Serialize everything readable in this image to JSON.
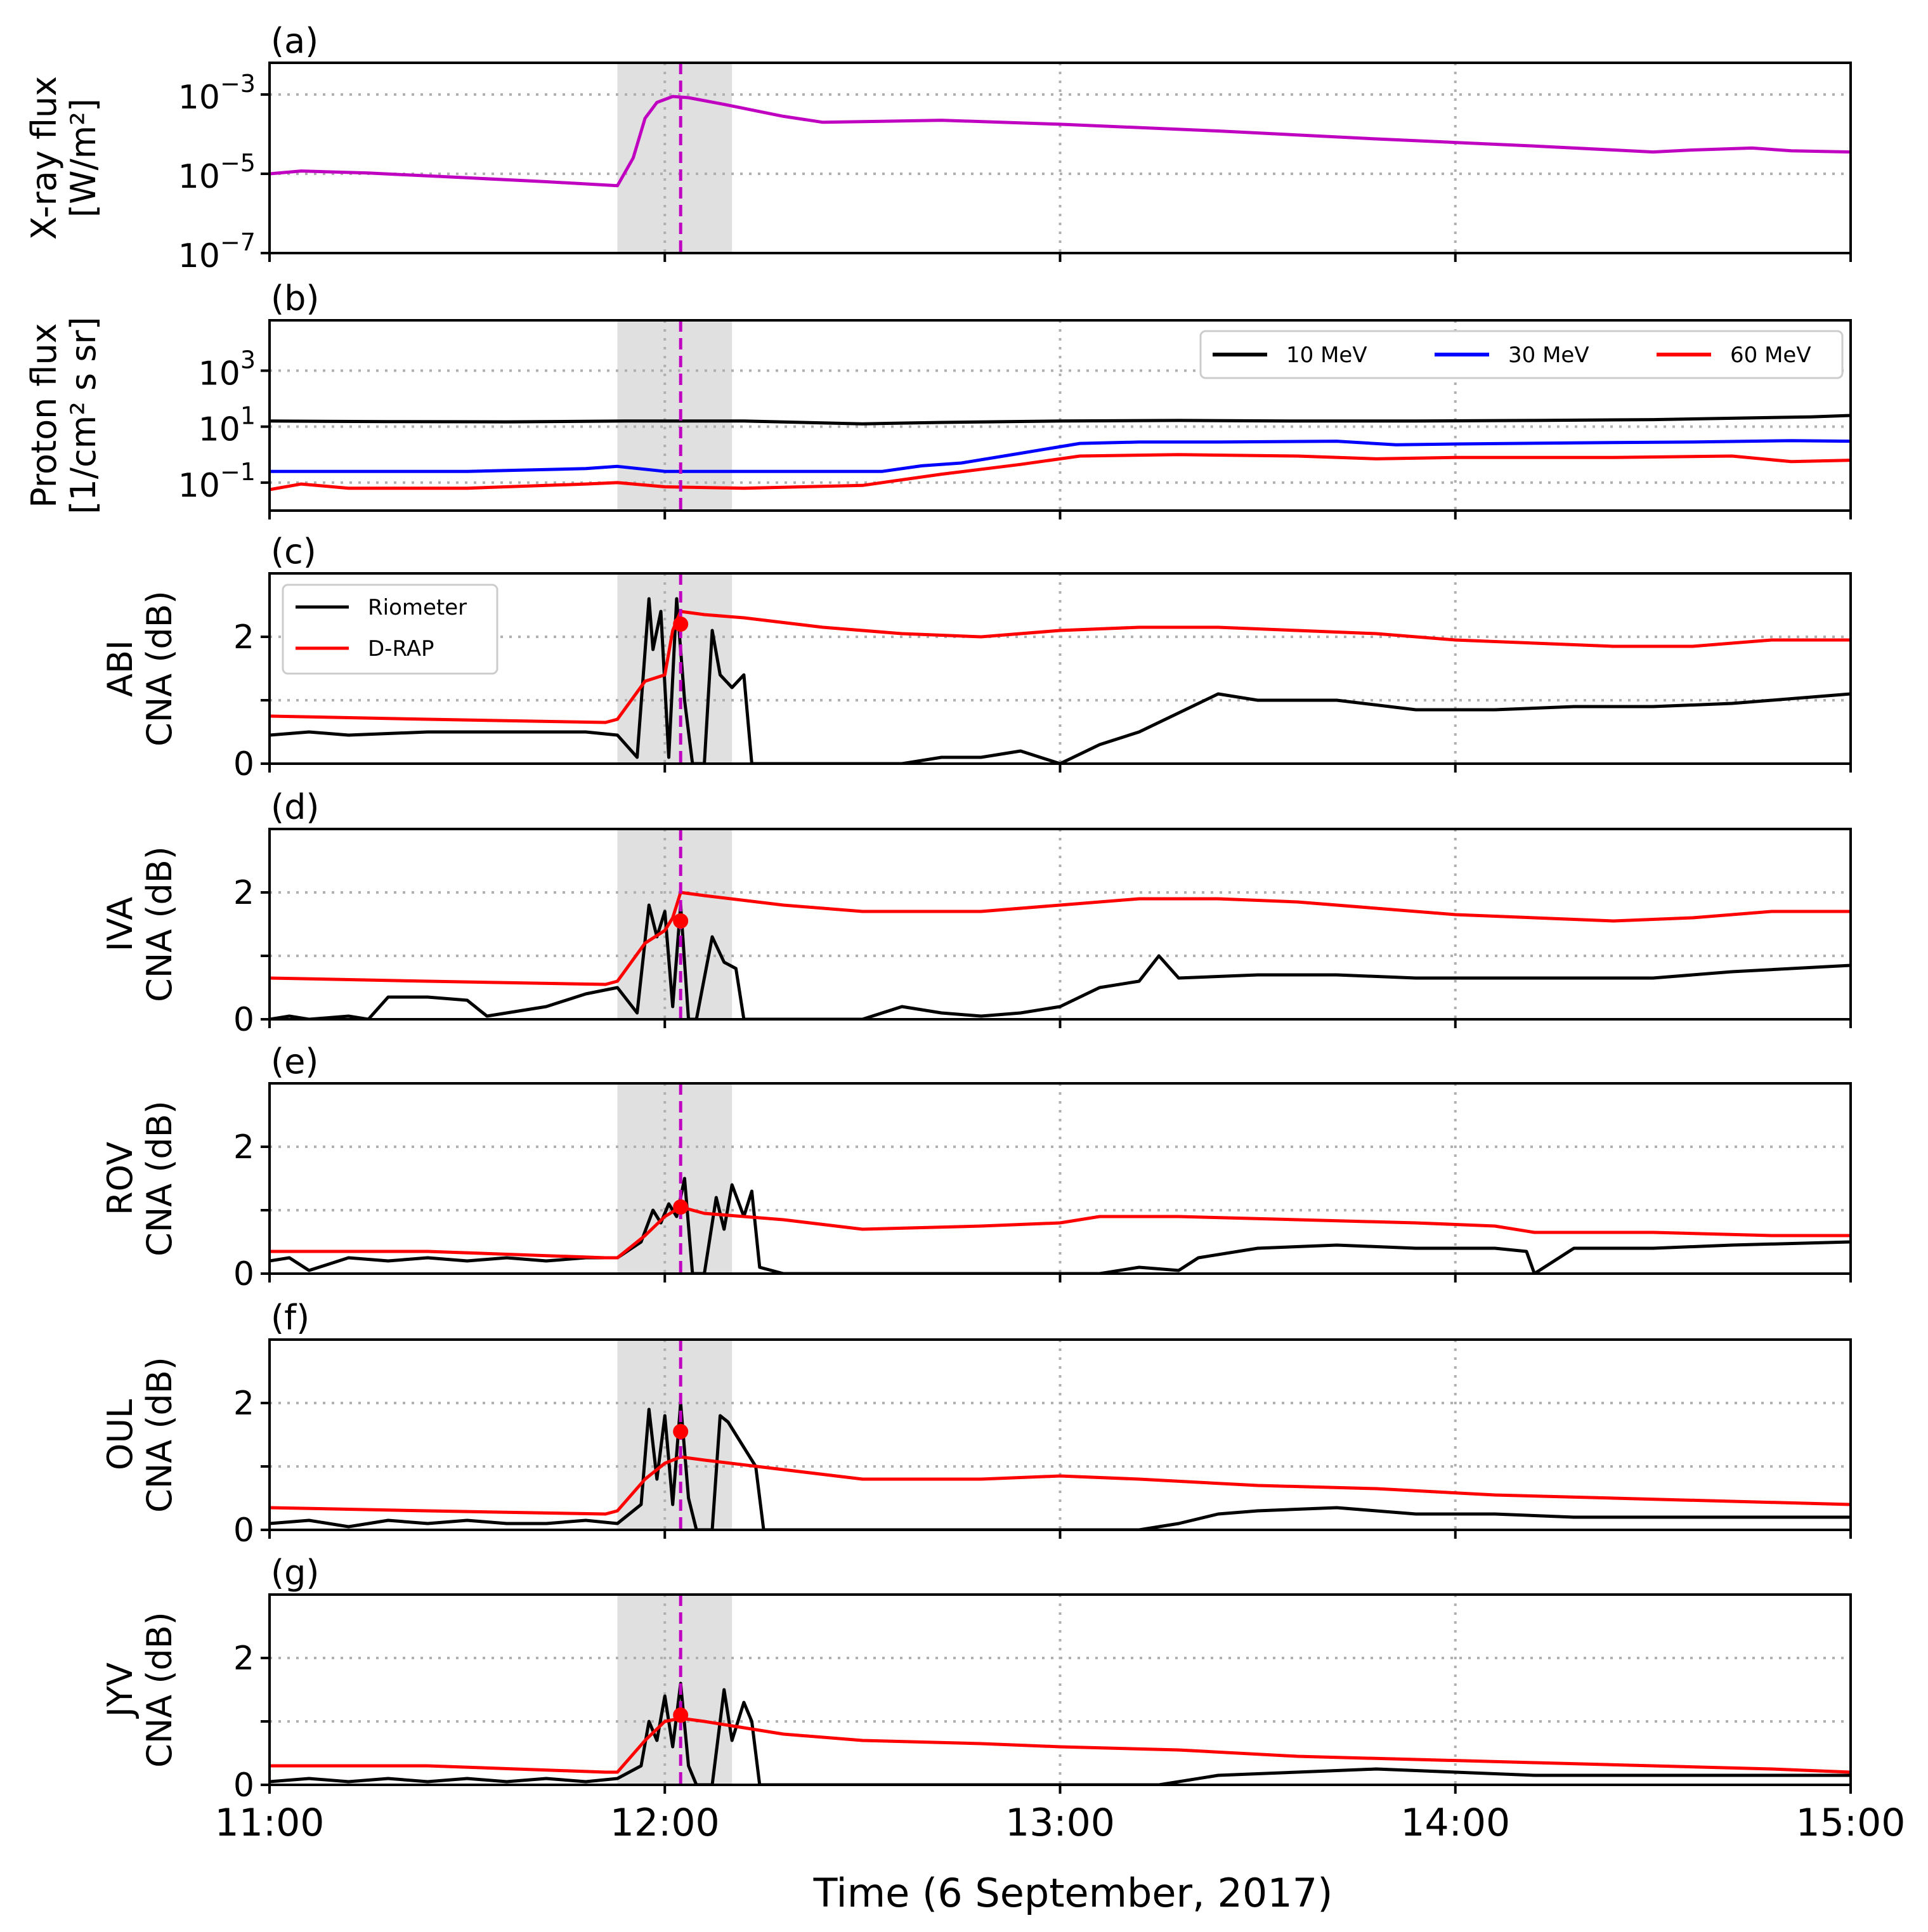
{
  "figure": {
    "xlabel": "Time (6 September, 2017)",
    "x_tick_labels": [
      "11:00",
      "12:00",
      "13:00",
      "14:00",
      "15:00"
    ],
    "shaded_interval_hours": [
      11.88,
      12.17
    ],
    "flare_marker_hour": 12.04,
    "colors": {
      "xray": "#c000c0",
      "flare_marker": "#c000c0",
      "shade": "#e0e0e0",
      "riometer": "#000000",
      "drap": "#ff0000",
      "p10": "#000000",
      "p30": "#0000ff",
      "p60": "#ff0000"
    }
  },
  "chart_data": [
    {
      "type": "line",
      "panel": "(a)",
      "ylabel_line1": "X-ray flux",
      "ylabel_line2": "[W/m²]",
      "y_scale": "log",
      "ylim_log10": [
        -7,
        -2.2
      ],
      "y_ticks": [
        {
          "log": -3,
          "base": "10",
          "exp": "−3"
        },
        {
          "log": -5,
          "base": "10",
          "exp": "−5"
        },
        {
          "log": -7,
          "base": "10",
          "exp": "−7"
        }
      ],
      "series": [
        {
          "name": "X-ray",
          "color_key": "xray",
          "x": [
            11.0,
            11.08,
            11.25,
            11.5,
            11.7,
            11.88,
            11.92,
            11.95,
            11.98,
            12.02,
            12.06,
            12.15,
            12.3,
            12.4,
            12.7,
            13.0,
            13.4,
            13.8,
            14.2,
            14.5,
            14.6,
            14.75,
            14.85,
            15.0
          ],
          "y_log10": [
            -5.0,
            -4.93,
            -4.98,
            -5.1,
            -5.2,
            -5.3,
            -4.6,
            -3.6,
            -3.2,
            -3.05,
            -3.08,
            -3.25,
            -3.55,
            -3.7,
            -3.65,
            -3.75,
            -3.92,
            -4.12,
            -4.3,
            -4.45,
            -4.4,
            -4.35,
            -4.42,
            -4.45
          ]
        }
      ]
    },
    {
      "type": "line",
      "panel": "(b)",
      "ylabel_line1": "Proton flux",
      "ylabel_line2": "[1/cm² s sr]",
      "y_scale": "log",
      "ylim_log10": [
        -2,
        4.8
      ],
      "y_ticks": [
        {
          "log": 3,
          "base": "10",
          "exp": "3"
        },
        {
          "log": 1,
          "base": "10",
          "exp": "1"
        },
        {
          "log": -1,
          "base": "10",
          "exp": "−1"
        }
      ],
      "legend": [
        "10 MeV",
        "30 MeV",
        "60 MeV"
      ],
      "series": [
        {
          "name": "10 MeV",
          "color_key": "p10",
          "x": [
            11.0,
            11.3,
            11.6,
            11.9,
            12.2,
            12.5,
            12.7,
            13.0,
            13.3,
            13.6,
            13.9,
            14.2,
            14.5,
            14.7,
            14.9,
            15.0
          ],
          "y_log10": [
            1.2,
            1.18,
            1.17,
            1.2,
            1.2,
            1.1,
            1.15,
            1.2,
            1.22,
            1.2,
            1.2,
            1.22,
            1.25,
            1.3,
            1.35,
            1.4
          ]
        },
        {
          "name": "30 MeV",
          "color_key": "p30",
          "x": [
            11.0,
            11.2,
            11.5,
            11.8,
            11.88,
            12.0,
            12.3,
            12.55,
            12.65,
            12.75,
            12.9,
            13.05,
            13.2,
            13.4,
            13.7,
            13.85,
            14.0,
            14.3,
            14.6,
            14.85,
            15.0
          ],
          "y_log10": [
            -0.6,
            -0.6,
            -0.6,
            -0.5,
            -0.42,
            -0.6,
            -0.6,
            -0.6,
            -0.4,
            -0.3,
            0.05,
            0.4,
            0.45,
            0.45,
            0.48,
            0.35,
            0.38,
            0.42,
            0.45,
            0.5,
            0.48
          ]
        },
        {
          "name": "60 MeV",
          "color_key": "p60",
          "x": [
            11.0,
            11.08,
            11.2,
            11.5,
            11.8,
            11.88,
            12.0,
            12.2,
            12.5,
            12.7,
            12.9,
            13.05,
            13.3,
            13.6,
            13.8,
            14.0,
            14.4,
            14.7,
            14.85,
            15.0
          ],
          "y_log10": [
            -1.25,
            -1.05,
            -1.2,
            -1.2,
            -1.05,
            -1.0,
            -1.15,
            -1.2,
            -1.1,
            -0.7,
            -0.35,
            -0.05,
            0.0,
            -0.05,
            -0.15,
            -0.1,
            -0.1,
            -0.05,
            -0.25,
            -0.2
          ]
        }
      ]
    },
    {
      "type": "line",
      "panel": "(c)",
      "ylabel_line1": "ABI",
      "ylabel_line2": "CNA (dB)",
      "ylim": [
        0,
        3
      ],
      "y_tick_labels": [
        "0",
        "2"
      ],
      "legend": [
        "Riometer",
        "D-RAP"
      ],
      "drap_marker": {
        "x": 12.04,
        "y": 2.2
      },
      "series": [
        {
          "name": "Riometer",
          "color_key": "riometer",
          "x": [
            11.0,
            11.1,
            11.2,
            11.4,
            11.6,
            11.8,
            11.88,
            11.93,
            11.96,
            11.97,
            11.99,
            12.01,
            12.03,
            12.05,
            12.07,
            12.1,
            12.12,
            12.14,
            12.17,
            12.2,
            12.22,
            12.25,
            12.6,
            12.7,
            12.8,
            12.9,
            13.0,
            13.1,
            13.2,
            13.3,
            13.4,
            13.5,
            13.7,
            13.9,
            14.1,
            14.3,
            14.5,
            14.7,
            15.0
          ],
          "y": [
            0.45,
            0.5,
            0.45,
            0.5,
            0.5,
            0.5,
            0.45,
            0.1,
            2.6,
            1.8,
            2.4,
            0.1,
            2.6,
            1.0,
            0.0,
            0.0,
            2.1,
            1.4,
            1.2,
            1.4,
            0.0,
            0.0,
            0.0,
            0.1,
            0.1,
            0.2,
            0.0,
            0.3,
            0.5,
            0.8,
            1.1,
            1.0,
            1.0,
            0.85,
            0.85,
            0.9,
            0.9,
            0.95,
            1.1
          ]
        },
        {
          "name": "D-RAP",
          "color_key": "drap",
          "x": [
            11.0,
            11.4,
            11.85,
            11.88,
            11.95,
            12.0,
            12.02,
            12.04,
            12.1,
            12.2,
            12.4,
            12.6,
            12.8,
            13.0,
            13.2,
            13.4,
            13.6,
            13.8,
            14.0,
            14.2,
            14.4,
            14.6,
            14.8,
            15.0
          ],
          "y": [
            0.75,
            0.7,
            0.65,
            0.7,
            1.3,
            1.4,
            2.1,
            2.4,
            2.35,
            2.3,
            2.15,
            2.05,
            2.0,
            2.1,
            2.15,
            2.15,
            2.1,
            2.05,
            1.95,
            1.9,
            1.85,
            1.85,
            1.95,
            1.95
          ]
        }
      ]
    },
    {
      "type": "line",
      "panel": "(d)",
      "ylabel_line1": "IVA",
      "ylabel_line2": "CNA (dB)",
      "ylim": [
        0,
        3
      ],
      "y_tick_labels": [
        "0",
        "2"
      ],
      "drap_marker": {
        "x": 12.04,
        "y": 1.55
      },
      "series": [
        {
          "name": "Riometer",
          "color_key": "riometer",
          "x": [
            11.0,
            11.05,
            11.1,
            11.2,
            11.25,
            11.3,
            11.4,
            11.5,
            11.55,
            11.6,
            11.7,
            11.8,
            11.88,
            11.93,
            11.96,
            11.98,
            12.0,
            12.02,
            12.04,
            12.06,
            12.08,
            12.12,
            12.15,
            12.18,
            12.2,
            12.25,
            12.5,
            12.6,
            12.7,
            12.8,
            12.9,
            13.0,
            13.1,
            13.2,
            13.25,
            13.3,
            13.5,
            13.7,
            13.9,
            14.1,
            14.3,
            14.5,
            14.7,
            15.0
          ],
          "y": [
            0.0,
            0.05,
            0.0,
            0.05,
            0.0,
            0.35,
            0.35,
            0.3,
            0.05,
            0.1,
            0.2,
            0.4,
            0.5,
            0.1,
            1.8,
            1.3,
            1.7,
            0.2,
            1.8,
            0.0,
            0.0,
            1.3,
            0.9,
            0.8,
            0.0,
            0.0,
            0.0,
            0.2,
            0.1,
            0.05,
            0.1,
            0.2,
            0.5,
            0.6,
            1.0,
            0.65,
            0.7,
            0.7,
            0.65,
            0.65,
            0.65,
            0.65,
            0.75,
            0.85
          ]
        },
        {
          "name": "D-RAP",
          "color_key": "drap",
          "x": [
            11.0,
            11.4,
            11.85,
            11.88,
            11.95,
            12.0,
            12.02,
            12.04,
            12.1,
            12.3,
            12.5,
            12.8,
            13.0,
            13.2,
            13.4,
            13.6,
            13.8,
            14.0,
            14.2,
            14.4,
            14.6,
            14.8,
            15.0
          ],
          "y": [
            0.65,
            0.6,
            0.55,
            0.6,
            1.2,
            1.4,
            1.6,
            2.0,
            1.95,
            1.8,
            1.7,
            1.7,
            1.8,
            1.9,
            1.9,
            1.85,
            1.75,
            1.65,
            1.6,
            1.55,
            1.6,
            1.7,
            1.7
          ]
        }
      ]
    },
    {
      "type": "line",
      "panel": "(e)",
      "ylabel_line1": "ROV",
      "ylabel_line2": "CNA (dB)",
      "ylim": [
        0,
        3
      ],
      "y_tick_labels": [
        "0",
        "2"
      ],
      "drap_marker": {
        "x": 12.04,
        "y": 1.05
      },
      "series": [
        {
          "name": "Riometer",
          "color_key": "riometer",
          "x": [
            11.0,
            11.05,
            11.1,
            11.2,
            11.3,
            11.4,
            11.5,
            11.6,
            11.7,
            11.8,
            11.88,
            11.94,
            11.97,
            11.99,
            12.01,
            12.03,
            12.05,
            12.07,
            12.1,
            12.13,
            12.15,
            12.17,
            12.2,
            12.22,
            12.24,
            12.3,
            13.1,
            13.2,
            13.3,
            13.35,
            13.5,
            13.7,
            13.9,
            14.1,
            14.18,
            14.2,
            14.3,
            14.5,
            14.7,
            15.0
          ],
          "y": [
            0.2,
            0.25,
            0.05,
            0.25,
            0.2,
            0.25,
            0.2,
            0.25,
            0.2,
            0.25,
            0.25,
            0.5,
            1.0,
            0.8,
            1.1,
            0.9,
            1.5,
            0.0,
            0.0,
            1.2,
            0.7,
            1.4,
            0.9,
            1.3,
            0.1,
            0.0,
            0.0,
            0.1,
            0.05,
            0.25,
            0.4,
            0.45,
            0.4,
            0.4,
            0.35,
            0.0,
            0.4,
            0.4,
            0.45,
            0.5
          ]
        },
        {
          "name": "D-RAP",
          "color_key": "drap",
          "x": [
            11.0,
            11.4,
            11.85,
            11.88,
            11.95,
            12.0,
            12.04,
            12.1,
            12.3,
            12.5,
            12.8,
            13.0,
            13.1,
            13.3,
            13.6,
            13.9,
            14.1,
            14.2,
            14.5,
            14.8,
            15.0
          ],
          "y": [
            0.35,
            0.35,
            0.25,
            0.25,
            0.6,
            0.9,
            1.05,
            0.95,
            0.85,
            0.7,
            0.75,
            0.8,
            0.9,
            0.9,
            0.85,
            0.8,
            0.75,
            0.65,
            0.65,
            0.6,
            0.6
          ]
        }
      ]
    },
    {
      "type": "line",
      "panel": "(f)",
      "ylabel_line1": "OUL",
      "ylabel_line2": "CNA (dB)",
      "ylim": [
        0,
        3
      ],
      "y_tick_labels": [
        "0",
        "2"
      ],
      "drap_marker": {
        "x": 12.04,
        "y": 1.55
      },
      "series": [
        {
          "name": "Riometer",
          "color_key": "riometer",
          "x": [
            11.0,
            11.1,
            11.2,
            11.3,
            11.4,
            11.5,
            11.6,
            11.7,
            11.8,
            11.88,
            11.94,
            11.96,
            11.98,
            12.0,
            12.02,
            12.04,
            12.06,
            12.08,
            12.12,
            12.14,
            12.16,
            12.2,
            12.23,
            12.25,
            12.28,
            13.2,
            13.3,
            13.4,
            13.5,
            13.7,
            13.9,
            14.1,
            14.3,
            14.5,
            14.7,
            15.0
          ],
          "y": [
            0.1,
            0.15,
            0.05,
            0.15,
            0.1,
            0.15,
            0.1,
            0.1,
            0.15,
            0.1,
            0.4,
            1.9,
            0.8,
            1.8,
            0.4,
            2.0,
            0.5,
            0.0,
            0.0,
            1.8,
            1.7,
            1.3,
            1.0,
            0.0,
            0.0,
            0.0,
            0.1,
            0.25,
            0.3,
            0.35,
            0.25,
            0.25,
            0.2,
            0.2,
            0.2,
            0.2
          ]
        },
        {
          "name": "D-RAP",
          "color_key": "drap",
          "x": [
            11.0,
            11.4,
            11.85,
            11.88,
            11.95,
            12.0,
            12.04,
            12.1,
            12.3,
            12.5,
            12.8,
            13.0,
            13.2,
            13.5,
            13.8,
            14.1,
            14.4,
            14.7,
            15.0
          ],
          "y": [
            0.35,
            0.3,
            0.25,
            0.3,
            0.8,
            1.05,
            1.15,
            1.1,
            0.95,
            0.8,
            0.8,
            0.85,
            0.8,
            0.7,
            0.65,
            0.55,
            0.5,
            0.45,
            0.4
          ]
        }
      ]
    },
    {
      "type": "line",
      "panel": "(g)",
      "ylabel_line1": "JYV",
      "ylabel_line2": "CNA (dB)",
      "ylim": [
        0,
        3
      ],
      "y_tick_labels": [
        "0",
        "2"
      ],
      "drap_marker": {
        "x": 12.04,
        "y": 1.1
      },
      "series": [
        {
          "name": "Riometer",
          "color_key": "riometer",
          "x": [
            11.0,
            11.1,
            11.2,
            11.3,
            11.4,
            11.5,
            11.6,
            11.7,
            11.8,
            11.88,
            11.94,
            11.96,
            11.98,
            12.0,
            12.02,
            12.04,
            12.06,
            12.08,
            12.12,
            12.15,
            12.17,
            12.2,
            12.22,
            12.24,
            13.25,
            13.4,
            13.6,
            13.8,
            14.0,
            14.2,
            14.4,
            14.6,
            14.8,
            15.0
          ],
          "y": [
            0.05,
            0.1,
            0.05,
            0.1,
            0.05,
            0.1,
            0.05,
            0.1,
            0.05,
            0.1,
            0.3,
            1.0,
            0.7,
            1.4,
            0.6,
            1.6,
            0.3,
            0.0,
            0.0,
            1.5,
            0.7,
            1.3,
            1.0,
            0.0,
            0.0,
            0.15,
            0.2,
            0.25,
            0.2,
            0.15,
            0.15,
            0.15,
            0.15,
            0.15
          ]
        },
        {
          "name": "D-RAP",
          "color_key": "drap",
          "x": [
            11.0,
            11.4,
            11.85,
            11.88,
            11.95,
            12.0,
            12.04,
            12.1,
            12.3,
            12.5,
            12.8,
            13.0,
            13.3,
            13.6,
            13.9,
            14.2,
            14.5,
            14.8,
            15.0
          ],
          "y": [
            0.3,
            0.3,
            0.2,
            0.2,
            0.7,
            1.0,
            1.05,
            1.0,
            0.8,
            0.7,
            0.65,
            0.6,
            0.55,
            0.45,
            0.4,
            0.35,
            0.3,
            0.25,
            0.2
          ]
        }
      ]
    }
  ]
}
